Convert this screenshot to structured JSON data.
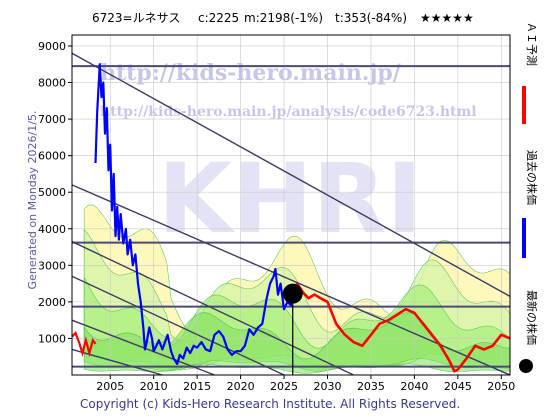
{
  "header": {
    "code": "6723=ルネサス",
    "close": "c:2225",
    "ma": "m:2198(-1%)",
    "trend": "t:353(-84%)",
    "stars": "★★★★★"
  },
  "side_label": "Generated on Monday 2026/1/5.",
  "footer": "Copyright (c) Kids-Hero Research Institute. All Rights Reserved.",
  "watermark": {
    "url_big": "http://kids-hero.main.jp/",
    "url_small": "http://kids-hero.main.jp/analysis/code6723.html",
    "big": "KHRI"
  },
  "legend": [
    {
      "label": "ＡＩ予測",
      "color": "#ff0000"
    },
    {
      "label": "過去の株価",
      "color": "#0000ff"
    },
    {
      "label": "最新の株価",
      "color": "#000000"
    }
  ],
  "chart_data": {
    "type": "line",
    "xlim": [
      2000.6,
      2051
    ],
    "ylim": [
      0,
      9300
    ],
    "xticks": [
      2005,
      2010,
      2015,
      2020,
      2025,
      2030,
      2035,
      2040,
      2045,
      2050
    ],
    "yticks": [
      1000,
      2000,
      3000,
      4000,
      5000,
      6000,
      7000,
      8000,
      9000
    ],
    "grid": true,
    "series": [
      {
        "name": "過去の株価",
        "color": "#0000ff",
        "points": [
          [
            2003.3,
            5800
          ],
          [
            2003.5,
            7200
          ],
          [
            2003.8,
            8500
          ],
          [
            2004.0,
            7600
          ],
          [
            2004.2,
            8000
          ],
          [
            2004.4,
            6600
          ],
          [
            2004.6,
            7300
          ],
          [
            2004.8,
            5600
          ],
          [
            2005.0,
            6300
          ],
          [
            2005.2,
            4500
          ],
          [
            2005.4,
            5500
          ],
          [
            2005.6,
            3800
          ],
          [
            2005.8,
            4600
          ],
          [
            2006.0,
            3700
          ],
          [
            2006.2,
            4400
          ],
          [
            2006.5,
            3600
          ],
          [
            2006.8,
            4000
          ],
          [
            2007.0,
            3300
          ],
          [
            2007.3,
            3700
          ],
          [
            2007.6,
            3000
          ],
          [
            2007.9,
            3300
          ],
          [
            2008.2,
            2500
          ],
          [
            2008.5,
            2000
          ],
          [
            2008.8,
            1300
          ],
          [
            2009.0,
            700
          ],
          [
            2009.2,
            900
          ],
          [
            2009.5,
            1300
          ],
          [
            2009.8,
            1000
          ],
          [
            2010.0,
            650
          ],
          [
            2010.3,
            800
          ],
          [
            2010.6,
            950
          ],
          [
            2011.0,
            700
          ],
          [
            2011.3,
            900
          ],
          [
            2011.6,
            1100
          ],
          [
            2012.0,
            650
          ],
          [
            2012.3,
            450
          ],
          [
            2012.7,
            300
          ],
          [
            2013.0,
            550
          ],
          [
            2013.4,
            450
          ],
          [
            2013.8,
            750
          ],
          [
            2014.2,
            600
          ],
          [
            2014.6,
            800
          ],
          [
            2015.0,
            750
          ],
          [
            2015.5,
            900
          ],
          [
            2016.0,
            700
          ],
          [
            2016.5,
            650
          ],
          [
            2017.0,
            1100
          ],
          [
            2017.5,
            1200
          ],
          [
            2018.0,
            1050
          ],
          [
            2018.5,
            700
          ],
          [
            2019.0,
            550
          ],
          [
            2019.5,
            650
          ],
          [
            2020.0,
            650
          ],
          [
            2020.5,
            800
          ],
          [
            2021.0,
            1250
          ],
          [
            2021.5,
            1100
          ],
          [
            2022.0,
            1300
          ],
          [
            2022.5,
            1400
          ],
          [
            2023.0,
            2100
          ],
          [
            2023.4,
            2500
          ],
          [
            2023.8,
            2700
          ],
          [
            2024.0,
            2900
          ],
          [
            2024.3,
            2200
          ],
          [
            2024.6,
            2500
          ],
          [
            2025.0,
            1800
          ],
          [
            2025.4,
            2000
          ],
          [
            2025.8,
            1900
          ],
          [
            2026.0,
            2225
          ]
        ]
      },
      {
        "name": "ＡＩ予測",
        "color": "#ff0000",
        "points": [
          [
            2026.0,
            2225
          ],
          [
            2026.5,
            2500
          ],
          [
            2027.2,
            2250
          ],
          [
            2027.8,
            2100
          ],
          [
            2028.5,
            2200
          ],
          [
            2029.2,
            2100
          ],
          [
            2030.0,
            2000
          ],
          [
            2031.0,
            1400
          ],
          [
            2032.0,
            1100
          ],
          [
            2033.0,
            900
          ],
          [
            2034.0,
            800
          ],
          [
            2035.0,
            1100
          ],
          [
            2036.0,
            1400
          ],
          [
            2037.0,
            1500
          ],
          [
            2038.0,
            1650
          ],
          [
            2039.0,
            1800
          ],
          [
            2040.0,
            1700
          ],
          [
            2041.0,
            1400
          ],
          [
            2042.0,
            1100
          ],
          [
            2043.0,
            800
          ],
          [
            2044.0,
            400
          ],
          [
            2044.6,
            100
          ],
          [
            2045.0,
            150
          ],
          [
            2046.0,
            450
          ],
          [
            2047.0,
            800
          ],
          [
            2048.0,
            700
          ],
          [
            2049.0,
            800
          ],
          [
            2050.0,
            1100
          ],
          [
            2051.0,
            1000
          ]
        ]
      }
    ],
    "past_red_segment": [
      [
        2000.6,
        1050
      ],
      [
        2001.0,
        1150
      ],
      [
        2001.4,
        900
      ],
      [
        2001.8,
        600
      ],
      [
        2002.2,
        950
      ],
      [
        2002.6,
        600
      ],
      [
        2003.0,
        950
      ],
      [
        2003.3,
        850
      ]
    ],
    "latest_price": {
      "x": 2026.0,
      "y": 2225
    },
    "horizontal_lines": [
      8450,
      3620,
      1870,
      230
    ],
    "trend_lines": [
      {
        "x1": 2000.6,
        "y1": 8800,
        "x2": 2051,
        "y2": 2150
      },
      {
        "x1": 2000.6,
        "y1": 5200,
        "x2": 2051,
        "y2": 0
      },
      {
        "x1": 2000.6,
        "y1": 3650,
        "x2": 2033,
        "y2": 0
      },
      {
        "x1": 2000.6,
        "y1": 2700,
        "x2": 2025,
        "y2": 0
      },
      {
        "x1": 2000.6,
        "y1": 1500,
        "x2": 2017,
        "y2": 0
      },
      {
        "x1": 2000.6,
        "y1": 700,
        "x2": 2011,
        "y2": 0
      }
    ]
  }
}
